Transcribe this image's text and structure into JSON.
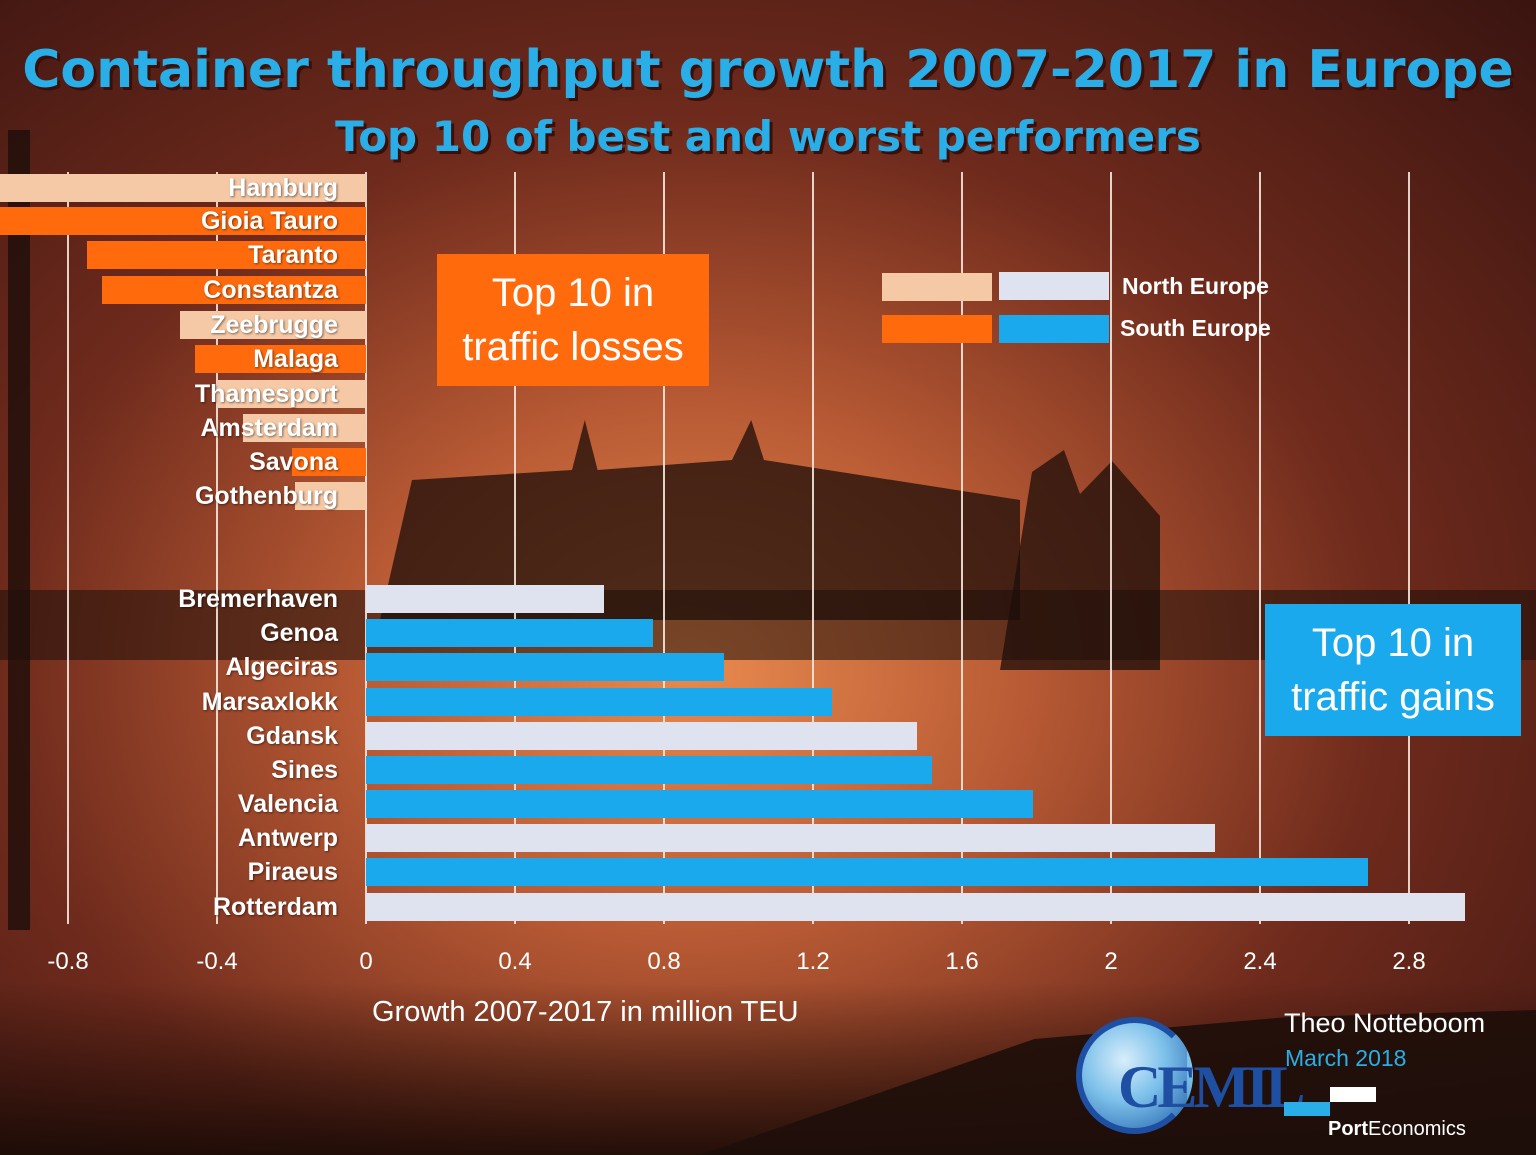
{
  "colors": {
    "north_loss": "#f6c9a6",
    "south_loss": "#ff6a0d",
    "north_gain": "#dfe3ef",
    "south_gain": "#1aa9ec",
    "title": "#29aee8"
  },
  "header": {
    "title": "Container throughput growth 2007-2017 in Europe",
    "subtitle": "Top 10 of best and worst performers"
  },
  "annotations": {
    "losses_box_line1": "Top 10 in",
    "losses_box_line2": "traffic losses",
    "gains_box_line1": "Top 10 in",
    "gains_box_line2": "traffic gains"
  },
  "legend": {
    "north": "North Europe",
    "south": "South Europe"
  },
  "axis": {
    "xlabel": "Growth 2007-2017 in million TEU",
    "ticks": [
      "-0.8",
      "-0.4",
      "0",
      "0.4",
      "0.8",
      "1.2",
      "1.6",
      "2",
      "2.4",
      "2.8"
    ]
  },
  "credits": {
    "author": "Theo Notteboom",
    "date": "March 2018",
    "logo_text": "CEMIL",
    "brand_bold": "Port",
    "brand_rest": "Economics"
  },
  "chart_data": {
    "type": "bar",
    "orientation": "horizontal",
    "title": "Container throughput growth 2007-2017 in Europe",
    "subtitle": "Top 10 of best and worst performers",
    "xlabel": "Growth 2007-2017 in million TEU",
    "ylabel": "",
    "xlim": [
      -0.98,
      3.0
    ],
    "grid": true,
    "legend_position": "upper right",
    "legend": [
      "North Europe",
      "South Europe"
    ],
    "categories": [
      "Hamburg",
      "Gioia Tauro",
      "Taranto",
      "Constantza",
      "Zeebrugge",
      "Malaga",
      "Thamesport",
      "Amsterdam",
      "Savona",
      "Gothenburg",
      "Bremerhaven",
      "Genoa",
      "Algeciras",
      "Marsaxlokk",
      "Gdansk",
      "Sines",
      "Valencia",
      "Antwerp",
      "Piraeus",
      "Rotterdam"
    ],
    "values": [
      -1.0,
      -1.0,
      -0.75,
      -0.71,
      -0.5,
      -0.46,
      -0.4,
      -0.33,
      -0.2,
      -0.19,
      0.64,
      0.77,
      0.96,
      1.25,
      1.48,
      1.52,
      1.79,
      2.28,
      2.69,
      2.95
    ],
    "region": [
      "North",
      "South",
      "South",
      "South",
      "North",
      "South",
      "North",
      "North",
      "South",
      "North",
      "North",
      "South",
      "South",
      "South",
      "North",
      "South",
      "South",
      "North",
      "South",
      "North"
    ],
    "groups": {
      "losses": [
        "Hamburg",
        "Gioia Tauro",
        "Taranto",
        "Constantza",
        "Zeebrugge",
        "Malaga",
        "Thamesport",
        "Amsterdam",
        "Savona",
        "Gothenburg"
      ],
      "gains": [
        "Bremerhaven",
        "Genoa",
        "Algeciras",
        "Marsaxlokk",
        "Gdansk",
        "Sines",
        "Valencia",
        "Antwerp",
        "Piraeus",
        "Rotterdam"
      ]
    },
    "notes": "Hamburg and Gioia Tauro bars extend beyond the left edge of the plot (< -0.98)."
  }
}
